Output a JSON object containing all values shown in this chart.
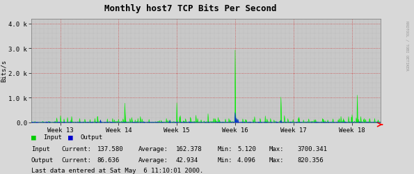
{
  "title": "Monthly host7 TCP Bits Per Second",
  "ylabel": "Bits/s",
  "ytick_vals": [
    0,
    1000,
    2000,
    3000,
    4000
  ],
  "ytick_labels": [
    "0.0",
    "1.0 k",
    "2.0 k",
    "3.0 k",
    "4.0 k"
  ],
  "ymax": 4200,
  "week_labels": [
    "Week 13",
    "Week 14",
    "Week 15",
    "Week 16",
    "Week 17",
    "Week 18"
  ],
  "week_positions": [
    84,
    252,
    420,
    588,
    756,
    924
  ],
  "xmin": 0,
  "xmax": 1008,
  "bg_color": "#d8d8d8",
  "plot_bg_color": "#c8c8c8",
  "grid_color_major": "#cc4444",
  "input_color": "#00ee00",
  "output_color": "#0000ff",
  "legend_input_color": "#00cc00",
  "legend_output_color": "#0000cc",
  "last_data": "Last data entered at Sat May  6 11:10:01 2000.",
  "watermark": "RRDTOOL / TOBI OETIKER",
  "num_points": 1008,
  "stats_rows": [
    [
      "Input",
      "Current:",
      "137.580",
      "Average:",
      "162.378",
      "Min:",
      "5.120",
      "Max:",
      "3700.341"
    ],
    [
      "Output",
      "Current:",
      "86.636",
      "Average:",
      "42.934",
      "Min:",
      "4.096",
      "Max:",
      "820.356"
    ]
  ]
}
